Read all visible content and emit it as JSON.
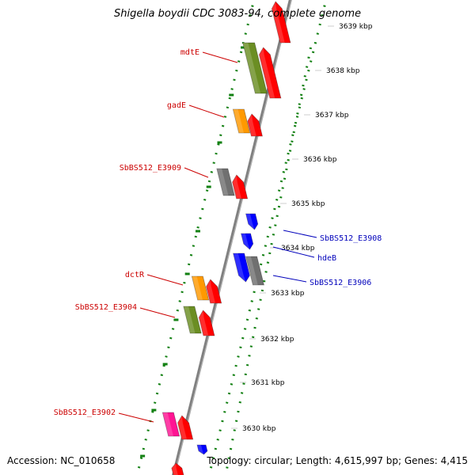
{
  "title": "Shigella boydii CDC 3083-94, complete genome",
  "accession": "Accession: NC_010658",
  "topology": "Topology: circular; Length: 4,615,997 bp; Genes: 4,415",
  "colors": {
    "backbone": "#8c8c8c",
    "dots": "#128012",
    "red": "#ff0000",
    "green": "#6b8e23",
    "orange": "#ff9900",
    "gray": "#707070",
    "pink": "#ff1493",
    "blue": "#0000ff",
    "label_forward": "#cc0000",
    "label_reverse": "#0000bb"
  },
  "ticks": [
    "3639 kbp",
    "3638 kbp",
    "3637 kbp",
    "3636 kbp",
    "3635 kbp",
    "3634 kbp",
    "3633 kbp",
    "3632 kbp",
    "3631 kbp",
    "3630 kbp"
  ],
  "gene_labels": [
    {
      "text": "mdtE",
      "strand": "forward"
    },
    {
      "text": "gadE",
      "strand": "forward"
    },
    {
      "text": "SbBS512_E3909",
      "strand": "forward"
    },
    {
      "text": "SbBS512_E3908",
      "strand": "reverse"
    },
    {
      "text": "hdeB",
      "strand": "reverse"
    },
    {
      "text": "SbBS512_E3906",
      "strand": "reverse"
    },
    {
      "text": "dctR",
      "strand": "forward"
    },
    {
      "text": "SbBS512_E3904",
      "strand": "forward"
    },
    {
      "text": "SbBS512_E3902",
      "strand": "forward"
    }
  ]
}
